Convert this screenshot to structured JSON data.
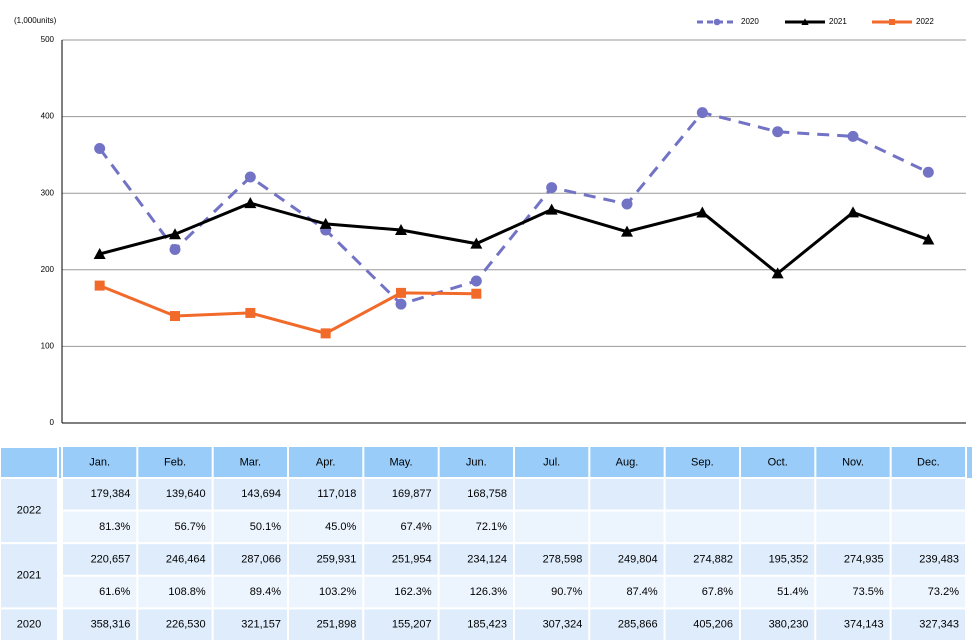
{
  "chart_data": {
    "type": "line",
    "y_unit_label": "(1,000units)",
    "categories": [
      "Jan.",
      "Feb.",
      "Mar.",
      "Apr.",
      "May.",
      "Jun.",
      "Jul.",
      "Aug.",
      "Sep.",
      "Oct.",
      "Nov.",
      "Dec."
    ],
    "ylim": [
      0,
      500
    ],
    "yticks": [
      0,
      100,
      200,
      300,
      400,
      500
    ],
    "grid": true,
    "legend": "top-right",
    "series": [
      {
        "name": "2020",
        "color": "#7373c6",
        "dashed": true,
        "marker": "circle",
        "values": [
          358.316,
          226.53,
          321.157,
          251.898,
          155.207,
          185.423,
          307.324,
          285.866,
          405.206,
          380.23,
          374.143,
          327.343
        ],
        "value_labels": [
          "358,316",
          "226,530",
          "321,157",
          "251,898",
          "155,207",
          "185,423",
          "307,324",
          "285,866",
          "405,206",
          "380,230",
          "374,143",
          "327,343"
        ]
      },
      {
        "name": "2021",
        "color": "#000000",
        "dashed": false,
        "marker": "triangle",
        "values": [
          220.657,
          246.464,
          287.066,
          259.931,
          251.954,
          234.124,
          278.598,
          249.804,
          274.882,
          195.352,
          274.935,
          239.483
        ],
        "value_labels": [
          "220,657",
          "246,464",
          "287,066",
          "259,931",
          "251,954",
          "234,124",
          "278,598",
          "249,804",
          "274,882",
          "195,352",
          "274,935",
          "239,483"
        ]
      },
      {
        "name": "2022",
        "color": "#f26a2a",
        "dashed": false,
        "marker": "square",
        "values": [
          179.384,
          139.64,
          143.694,
          117.018,
          169.877,
          168.758,
          null,
          null,
          null,
          null,
          null,
          null
        ],
        "value_labels": [
          "179,384",
          "139,640",
          "143,694",
          "117,018",
          "169,877",
          "168,758",
          null,
          null,
          null,
          null,
          null,
          null
        ]
      }
    ]
  },
  "table": {
    "percents": [
      [
        "81.3%",
        "56.7%",
        "50.1%",
        "45.0%",
        "67.4%",
        "72.1%",
        null,
        null,
        null,
        null,
        null,
        null
      ],
      [
        "61.6%",
        "108.8%",
        "89.4%",
        "103.2%",
        "162.3%",
        "126.3%",
        "90.7%",
        "87.4%",
        "67.8%",
        "51.4%",
        "73.5%",
        "73.2%"
      ]
    ]
  }
}
